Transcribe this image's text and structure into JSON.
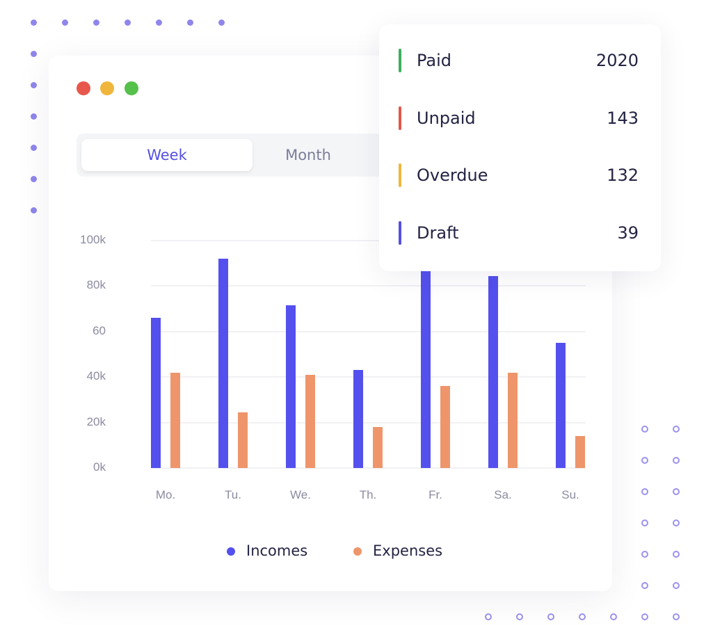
{
  "tabs": [
    {
      "label": "Week",
      "active": true
    },
    {
      "label": "Month",
      "active": false
    }
  ],
  "window_controls": {
    "colors": [
      "#e8574c",
      "#f0b63c",
      "#55c04a"
    ]
  },
  "status_summary": [
    {
      "label": "Paid",
      "value": "2020",
      "color": "#3dae5c"
    },
    {
      "label": "Unpaid",
      "value": "143",
      "color": "#e0574c"
    },
    {
      "label": "Overdue",
      "value": "132",
      "color": "#f0b63c"
    },
    {
      "label": "Draft",
      "value": "39",
      "color": "#5450e0"
    }
  ],
  "chart_data": {
    "type": "bar",
    "categories": [
      "Mo.",
      "Tu.",
      "We.",
      "Th.",
      "Fr.",
      "Sa.",
      "Su."
    ],
    "series": [
      {
        "name": "Incomes",
        "color": "#5450ee",
        "values": [
          66,
          92,
          71.5,
          43,
          86.5,
          84.5,
          55
        ]
      },
      {
        "name": "Expenses",
        "color": "#ee956b",
        "values": [
          42,
          24.5,
          41,
          18,
          36,
          42,
          14
        ]
      }
    ],
    "yticks": [
      "0k",
      "20k",
      "40k",
      "60",
      "80k",
      "100k"
    ],
    "ylim": [
      0,
      100
    ],
    "grid": true,
    "legend": "bottom"
  }
}
